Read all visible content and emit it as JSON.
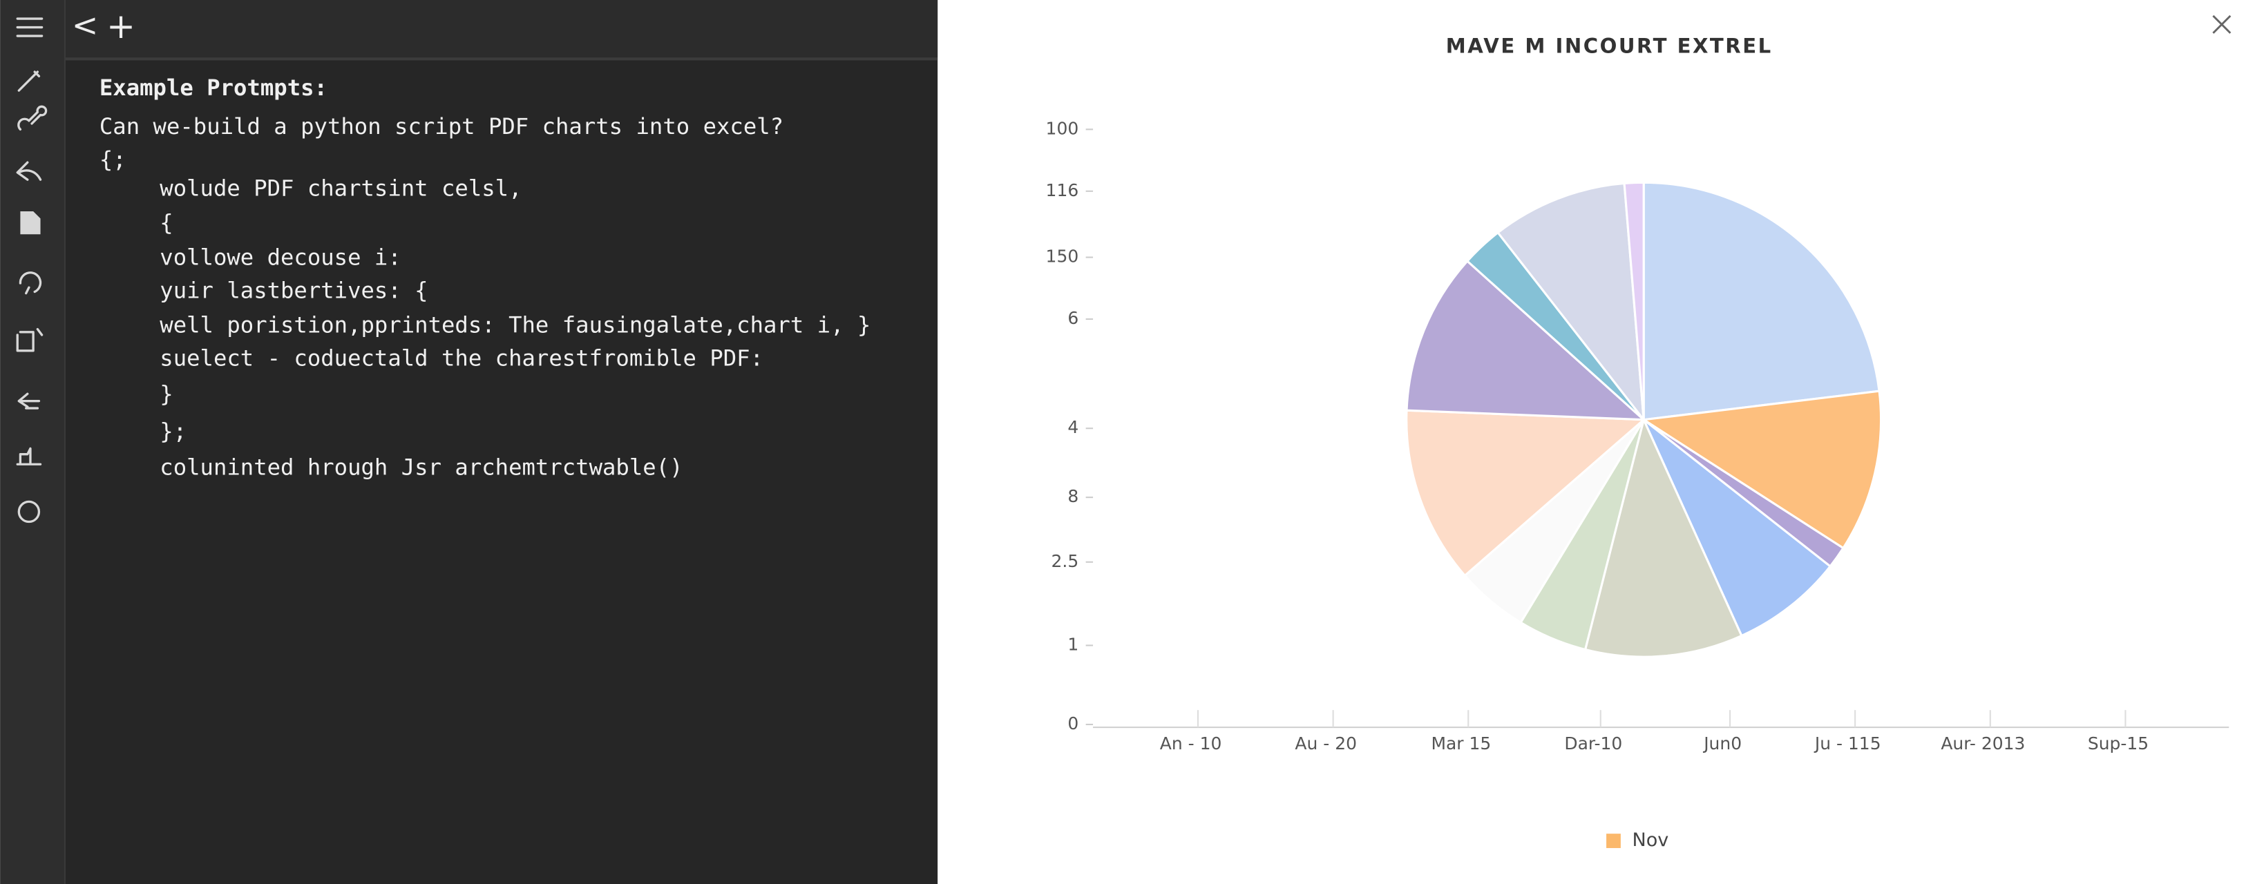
{
  "top_bar": {
    "back": "<",
    "new": "+"
  },
  "editor": {
    "heading": "Example Protmpts:",
    "lines": [
      "Can we-build a python script PDF charts into excel?",
      "{;",
      "wolude PDF chartsint celsl,",
      "{",
      "vollowe decouse i:",
      "yuir lastbertives: {",
      "well poristion,pprinteds: The fausingalate,chart i, }",
      "suelect - coduectald the charestfromible PDF:",
      "}",
      "};",
      "coluninted hrough Jsr archemtrctwable()"
    ]
  },
  "chart_data": {
    "type": "pie",
    "title": "MAVE M INCOURT EXTREL",
    "values": [
      23,
      11,
      1.5,
      7.6,
      10.7,
      4.7,
      4.9,
      12,
      11,
      2.8,
      9.2,
      1.3
    ],
    "colors": [
      "#c5d8f5",
      "#fdbf7e",
      "#b2a4d6",
      "#a4c3f7",
      "#d6d8c8",
      "#d5e2cc",
      "#fafafa",
      "#fddcc8",
      "#b5a8d6",
      "#85c1d6",
      "#d5d9ea",
      "#e3cff5"
    ],
    "y_axis_labels": [
      100,
      116,
      150,
      6,
      4,
      8,
      2.5,
      1,
      0
    ],
    "x_axis_labels": [
      "An - 10",
      "Au - 20",
      "Mar 15",
      "Dar-10",
      "Jun0",
      "Ju - 115",
      "Aur- 2013",
      "Sup-15"
    ],
    "legend": {
      "label": "Nov",
      "color": "#fbb86b"
    }
  }
}
